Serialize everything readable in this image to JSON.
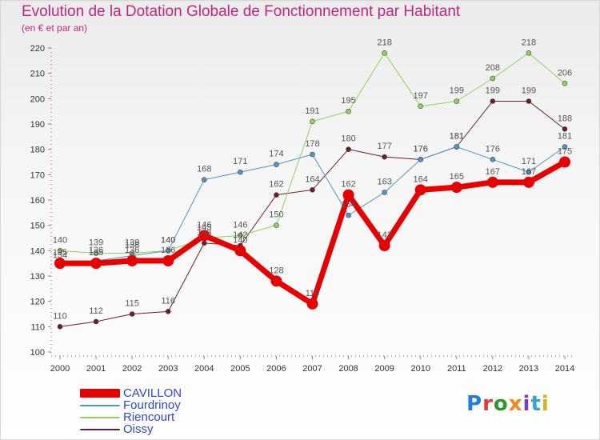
{
  "title": "Evolution de la Dotation Globale de Fonctionnement par Habitant",
  "subtitle": "(en € et par an)",
  "logo": {
    "text": "Proxiti",
    "colors": [
      "#1e7fd8",
      "#e23d2e",
      "#2b9a2e",
      "#f08a1c",
      "#7a3fbf",
      "#2fa7d0",
      "#d8b11a"
    ]
  },
  "chart_data": {
    "type": "line",
    "x": [
      "2000",
      "2001",
      "2002",
      "2003",
      "2004",
      "2005",
      "2006",
      "2007",
      "2008",
      "2009",
      "2010",
      "2011",
      "2012",
      "2013",
      "2014"
    ],
    "ylim": [
      100,
      220
    ],
    "yticks": [
      100,
      110,
      120,
      130,
      140,
      150,
      160,
      170,
      180,
      190,
      200,
      210,
      220
    ],
    "grid": false,
    "legend_position": "bottom-left",
    "series": [
      {
        "name": "Oissy",
        "color": "#6b1f24",
        "width": 1,
        "values": [
          110,
          112,
          115,
          116,
          143,
          142,
          162,
          164,
          180,
          177,
          176,
          181,
          199,
          199,
          188
        ]
      },
      {
        "name": "Riencourt",
        "color": "#8fd45a",
        "width": 1,
        "values": [
          140,
          139,
          139,
          140,
          145,
          146,
          150,
          191,
          195,
          218,
          197,
          199,
          208,
          218,
          206
        ]
      },
      {
        "name": "Fourdrinoy",
        "color": "#4f96c8",
        "width": 1,
        "values": [
          134,
          136,
          138,
          140,
          168,
          171,
          174,
          178,
          154,
          163,
          176,
          181,
          176,
          171,
          181
        ]
      },
      {
        "name": "CAVILLON",
        "color": "#e60000",
        "width": 7,
        "values": [
          135,
          135,
          136,
          136,
          146,
          140,
          128,
          119,
          162,
          142,
          164,
          165,
          167,
          167,
          175
        ]
      }
    ],
    "data_labels": {
      "CAVILLON": [
        "135",
        "135",
        "136",
        "136",
        "146",
        "140",
        "128",
        "119",
        "162",
        "142",
        "164",
        "165",
        "167",
        "167",
        "175"
      ],
      "Fourdrinoy": [
        "134",
        "136",
        "138",
        "140",
        "168",
        "171",
        "174",
        "178",
        "154",
        "163",
        "176",
        "181",
        "176",
        "171",
        "181"
      ],
      "Riencourt": [
        "140",
        "139",
        "139",
        "140",
        "145",
        "146",
        "150",
        "191",
        "195",
        "218",
        "197",
        "199",
        "208",
        "218",
        "206"
      ],
      "Oissy": [
        "110",
        "112",
        "115",
        "116",
        "143",
        "142",
        "162",
        "164",
        "180",
        "177",
        "176",
        "181",
        "199",
        "199",
        "188"
      ]
    }
  },
  "legend": [
    {
      "name": "CAVILLON",
      "color": "#e60000",
      "thick": true
    },
    {
      "name": "Fourdrinoy",
      "color": "#4f96c8",
      "thick": false
    },
    {
      "name": "Riencourt",
      "color": "#8fd45a",
      "thick": false
    },
    {
      "name": "Oissy",
      "color": "#6b1f24",
      "thick": false
    }
  ]
}
